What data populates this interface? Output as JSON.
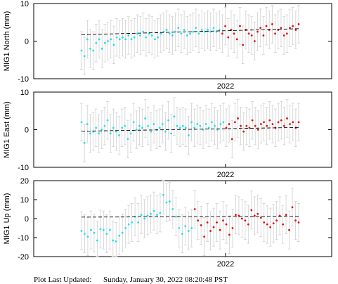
{
  "footer": {
    "label": "Plot Last Updated:",
    "timestamp": "Sunday, January 30, 2022 08:20:48 PST"
  },
  "colors": {
    "series_a": "#22e0ee",
    "series_b": "#e01010",
    "error_bar": "#d0d0d0",
    "trend": "#000000"
  },
  "chart_data": [
    {
      "type": "scatter",
      "ylabel": "MIG1 North (mm)",
      "ylim": [
        -10,
        10
      ],
      "yticks": [
        -10,
        0,
        10
      ],
      "xticks": [
        "2022"
      ],
      "grid": false,
      "trend": [
        1.7,
        3.3
      ],
      "error_bar_halfwidth": 5,
      "series": [
        {
          "color_key": "series_a",
          "y": [
            -2.5,
            -4.0,
            0.5,
            -2.0,
            -2.5,
            -0.5,
            0.5,
            -2.0,
            -0.5,
            0.0,
            0.5,
            -1.0,
            1.0,
            0.5,
            1.0,
            0.5,
            1.5,
            0.5,
            1.0,
            2.0,
            1.5,
            2.5,
            1.0,
            2.0,
            1.5,
            0.5,
            1.0,
            2.0,
            2.5,
            3.0,
            2.0,
            1.5,
            2.5,
            3.5,
            2.0,
            3.0,
            1.5,
            2.0,
            2.5,
            3.5,
            2.0,
            3.0,
            2.5,
            3.0,
            2.5,
            3.5,
            2.5,
            3.0
          ]
        },
        {
          "color_key": "series_b",
          "y": [
            2.0,
            4.0,
            1.0,
            3.0,
            2.0,
            0.5,
            4.0,
            -1.0,
            3.0,
            2.0,
            1.5,
            0.0,
            2.5,
            3.5,
            1.5,
            4.0,
            3.0,
            4.5,
            2.0,
            3.0,
            3.5,
            1.5,
            2.0,
            3.5,
            4.0,
            3.0,
            4.5
          ]
        }
      ]
    },
    {
      "type": "scatter",
      "ylabel": "MIG1 East (mm)",
      "ylim": [
        -10,
        10
      ],
      "yticks": [
        -10,
        0,
        10
      ],
      "xticks": [
        "2022"
      ],
      "grid": false,
      "trend": [
        -0.4,
        0.6
      ],
      "error_bar_halfwidth": 5,
      "series": [
        {
          "color_key": "series_a",
          "y": [
            2.0,
            -3.5,
            1.5,
            -1.0,
            -0.5,
            0.5,
            -1.0,
            0.0,
            1.0,
            2.5,
            -1.0,
            0.5,
            -0.5,
            -1.5,
            0.5,
            1.0,
            -2.5,
            -1.0,
            2.0,
            0.0,
            1.0,
            0.5,
            3.0,
            1.0,
            -0.5,
            1.5,
            0.0,
            0.5,
            1.5,
            -0.5,
            2.5,
            -1.0,
            3.5,
            1.0,
            0.5,
            1.0,
            0.5,
            -1.5,
            2.0,
            0.5,
            1.5,
            1.0,
            0.0,
            1.5,
            0.5,
            2.0,
            1.0,
            0.0,
            1.5,
            2.0
          ]
        },
        {
          "color_key": "series_b",
          "y": [
            0.5,
            1.5,
            -2.5,
            2.0,
            3.0,
            1.0,
            -0.5,
            1.0,
            0.5,
            2.5,
            1.0,
            0.0,
            1.5,
            2.0,
            1.0,
            2.5,
            1.5,
            0.5,
            2.0,
            2.5,
            1.0,
            3.0,
            1.5,
            2.0,
            0.5,
            2.0
          ]
        }
      ]
    },
    {
      "type": "scatter",
      "ylabel": "MIG1 Up (mm)",
      "ylim": [
        -20,
        20
      ],
      "yticks": [
        -20,
        -10,
        0,
        10,
        20
      ],
      "xticks": [
        "2022"
      ],
      "grid": false,
      "trend": [
        0.8,
        1.2
      ],
      "error_bar_halfwidth": 10,
      "series": [
        {
          "color_key": "series_a",
          "y": [
            -6.5,
            -8.0,
            -9.5,
            -6.0,
            -7.5,
            -11.5,
            -5.5,
            -6.0,
            -8.0,
            -6.0,
            -11.5,
            -12.0,
            -9.0,
            -7.5,
            -5.0,
            -3.0,
            -2.0,
            1.0,
            -2.0,
            2.0,
            0.0,
            1.5,
            2.5,
            4.0,
            2.0,
            3.0,
            12.5,
            8.5,
            9.0,
            5.0,
            1.0,
            -5.0,
            -8.0,
            -4.0,
            -6.5,
            -5.0
          ]
        },
        {
          "color_key": "series_b",
          "y": [
            5.0,
            -1.0,
            -3.5,
            -9.5,
            -2.0,
            -6.5,
            -4.5,
            -2.0,
            -6.0,
            -1.0,
            -3.0,
            -8.5,
            -5.0,
            2.0,
            1.5,
            0.0,
            -1.0,
            -3.0,
            4.5,
            1.5,
            2.5,
            0.5,
            -2.0,
            -3.0,
            -4.5,
            -2.5,
            -1.0,
            1.5,
            -3.0,
            2.0,
            -6.0,
            6.0,
            -1.0,
            -2.0
          ]
        }
      ]
    }
  ]
}
